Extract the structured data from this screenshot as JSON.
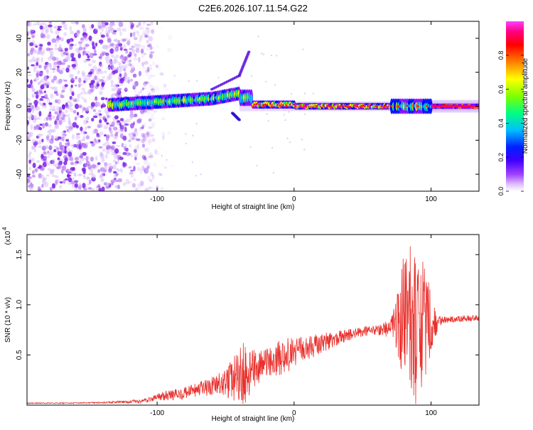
{
  "title": "C2E6.2026.107.11.54.G22",
  "chart_data": [
    {
      "type": "heatmap",
      "title": "C2E6.2026.107.11.54.G22",
      "xlabel": "Height of straight line (km)",
      "ylabel": "Frequency (Hz)",
      "xlim": [
        -195,
        135
      ],
      "ylim": [
        -50,
        50
      ],
      "xticks": [
        -100,
        0,
        100
      ],
      "yticks": [
        -40,
        -20,
        0,
        20,
        40
      ],
      "xtick_labels": [
        "-100",
        "0",
        "100"
      ],
      "ytick_labels": [
        "-40",
        "-20",
        "0",
        "20",
        "40"
      ],
      "colorbar": {
        "label": "Normalized spectral amplitude",
        "range": [
          0,
          1
        ],
        "ticks": [
          0.0,
          0.2,
          0.4,
          0.6,
          0.8
        ],
        "tick_labels": [
          "0.0",
          "0.2",
          "0.4",
          "0.6",
          "0.8"
        ],
        "colors": [
          "#ffffff",
          "#c080ff",
          "#8000ff",
          "#0000ff",
          "#00c0ff",
          "#00ff80",
          "#80ff00",
          "#ffff00",
          "#ff8000",
          "#ff0000",
          "#ff00a0",
          "#ff40ff"
        ]
      },
      "features": [
        {
          "name": "noise-region",
          "x_range": [
            -195,
            -105
          ],
          "freq_range": [
            -50,
            50
          ],
          "amplitude": 0.1
        },
        {
          "name": "signal-band",
          "x_range": [
            -135,
            135
          ],
          "center_freq": 0,
          "amplitude_range": [
            0.2,
            1.0
          ]
        },
        {
          "name": "upper-branch",
          "x": [
            -60,
            -40,
            -33
          ],
          "freq": [
            10,
            18,
            32
          ]
        },
        {
          "name": "lower-branch",
          "x": [
            -45,
            -40
          ],
          "freq": [
            -4,
            -8
          ]
        }
      ]
    },
    {
      "type": "line",
      "xlabel": "Height of straight line (km)",
      "ylabel": "SNR (10 * v/v)",
      "scale_label": "(x10",
      "scale_exponent": "4",
      "xlim": [
        -195,
        135
      ],
      "ylim": [
        0,
        1.7
      ],
      "xticks": [
        -100,
        0,
        100
      ],
      "xtick_labels": [
        "-100",
        "0",
        "100"
      ],
      "yticks": [
        0.5,
        1.0,
        1.5
      ],
      "ytick_labels": [
        "0.5",
        "1.0",
        "1.5"
      ],
      "color": "#e8302c",
      "series": [
        {
          "name": "SNR",
          "x": [
            -195,
            -160,
            -130,
            -110,
            -100,
            -90,
            -80,
            -70,
            -60,
            -50,
            -40,
            -35,
            -30,
            -20,
            -10,
            0,
            10,
            20,
            30,
            40,
            50,
            60,
            70,
            75,
            80,
            85,
            90,
            95,
            100,
            105,
            110,
            120,
            135
          ],
          "y": [
            0.02,
            0.02,
            0.03,
            0.04,
            0.08,
            0.1,
            0.12,
            0.15,
            0.18,
            0.22,
            0.28,
            0.32,
            0.35,
            0.42,
            0.48,
            0.52,
            0.57,
            0.62,
            0.66,
            0.7,
            0.73,
            0.75,
            0.77,
            0.78,
            0.8,
            0.8,
            0.8,
            0.8,
            0.8,
            0.83,
            0.85,
            0.86,
            0.87
          ],
          "noise_amplitude": [
            0.005,
            0.005,
            0.01,
            0.02,
            0.04,
            0.05,
            0.06,
            0.08,
            0.1,
            0.14,
            0.3,
            0.35,
            0.2,
            0.14,
            0.18,
            0.16,
            0.12,
            0.1,
            0.08,
            0.06,
            0.05,
            0.05,
            0.1,
            0.3,
            0.7,
            0.85,
            0.8,
            0.6,
            0.35,
            0.06,
            0.03,
            0.03,
            0.03
          ]
        }
      ]
    }
  ]
}
